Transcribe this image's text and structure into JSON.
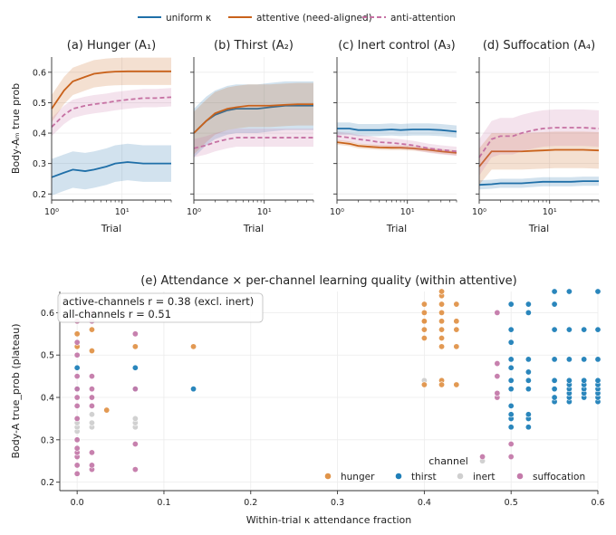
{
  "chart_data": [
    {
      "type": "line",
      "title": "(a) Hunger (A₁)",
      "xlabel": "Trial",
      "ylabel": "Body-Aₘ true prob",
      "x_scale": "log",
      "xlim": [
        1,
        50
      ],
      "ylim": [
        0.18,
        0.65
      ],
      "x_ticks": [
        "10⁰",
        "10¹"
      ],
      "y_ticks": [
        "0.2",
        "0.3",
        "0.4",
        "0.5",
        "0.6"
      ],
      "x": [
        1,
        1.5,
        2,
        3,
        4,
        6,
        8,
        12,
        20,
        30,
        50
      ],
      "series": [
        {
          "name": "uniform κ",
          "values": [
            0.255,
            0.27,
            0.28,
            0.275,
            0.28,
            0.29,
            0.3,
            0.305,
            0.3,
            0.3,
            0.3
          ],
          "band": 0.06,
          "color": "#1f6fa8"
        },
        {
          "name": "attentive (need-aligned)",
          "values": [
            0.48,
            0.54,
            0.57,
            0.585,
            0.595,
            0.6,
            0.602,
            0.603,
            0.603,
            0.603,
            0.603
          ],
          "band": 0.045,
          "color": "#c9621b"
        },
        {
          "name": "anti-attention",
          "values": [
            0.42,
            0.46,
            0.48,
            0.49,
            0.495,
            0.5,
            0.505,
            0.51,
            0.515,
            0.515,
            0.518
          ],
          "band": 0.03,
          "color": "#c671a3"
        }
      ]
    },
    {
      "type": "line",
      "title": "(b) Thirst (A₂)",
      "xlabel": "Trial",
      "x_scale": "log",
      "xlim": [
        1,
        50
      ],
      "ylim": [
        0.18,
        0.65
      ],
      "x_ticks": [
        "10⁰",
        "10¹"
      ],
      "x": [
        1,
        1.5,
        2,
        3,
        4,
        6,
        8,
        12,
        20,
        30,
        50
      ],
      "series": [
        {
          "name": "uniform κ",
          "values": [
            0.4,
            0.44,
            0.46,
            0.475,
            0.48,
            0.48,
            0.48,
            0.485,
            0.49,
            0.49,
            0.49
          ],
          "band": 0.08,
          "color": "#1f6fa8"
        },
        {
          "name": "attentive (need-aligned)",
          "values": [
            0.4,
            0.44,
            0.465,
            0.48,
            0.485,
            0.49,
            0.49,
            0.49,
            0.493,
            0.495,
            0.495
          ],
          "band": 0.07,
          "color": "#c9621b"
        },
        {
          "name": "anti-attention",
          "values": [
            0.35,
            0.36,
            0.37,
            0.38,
            0.385,
            0.385,
            0.385,
            0.385,
            0.385,
            0.385,
            0.385
          ],
          "band": 0.03,
          "color": "#c671a3"
        }
      ]
    },
    {
      "type": "line",
      "title": "(c) Inert control (A₃)",
      "xlabel": "Trial",
      "x_scale": "log",
      "xlim": [
        1,
        50
      ],
      "ylim": [
        0.18,
        0.65
      ],
      "x_ticks": [
        "10⁰",
        "10¹"
      ],
      "x": [
        1,
        1.5,
        2,
        3,
        4,
        6,
        8,
        12,
        20,
        30,
        50
      ],
      "series": [
        {
          "name": "uniform κ",
          "values": [
            0.415,
            0.415,
            0.41,
            0.41,
            0.41,
            0.412,
            0.41,
            0.412,
            0.412,
            0.41,
            0.405
          ],
          "band": 0.02,
          "color": "#1f6fa8"
        },
        {
          "name": "attentive (need-aligned)",
          "values": [
            0.37,
            0.365,
            0.358,
            0.355,
            0.353,
            0.352,
            0.352,
            0.35,
            0.345,
            0.34,
            0.335
          ],
          "band": 0.008,
          "color": "#c9621b"
        },
        {
          "name": "anti-attention",
          "values": [
            0.39,
            0.385,
            0.38,
            0.375,
            0.37,
            0.368,
            0.365,
            0.36,
            0.35,
            0.345,
            0.34
          ],
          "band": 0.015,
          "color": "#c671a3"
        }
      ]
    },
    {
      "type": "line",
      "title": "(d) Suffocation (A₄)",
      "xlabel": "Trial",
      "x_scale": "log",
      "xlim": [
        1,
        50
      ],
      "ylim": [
        0.18,
        0.65
      ],
      "x_ticks": [
        "10⁰",
        "10¹"
      ],
      "x": [
        1,
        1.5,
        2,
        3,
        4,
        6,
        8,
        12,
        20,
        30,
        50
      ],
      "series": [
        {
          "name": "uniform κ",
          "values": [
            0.23,
            0.232,
            0.235,
            0.235,
            0.235,
            0.238,
            0.24,
            0.24,
            0.24,
            0.242,
            0.242
          ],
          "band": 0.015,
          "color": "#1f6fa8"
        },
        {
          "name": "attentive (need-aligned)",
          "values": [
            0.29,
            0.34,
            0.34,
            0.34,
            0.34,
            0.342,
            0.343,
            0.345,
            0.345,
            0.345,
            0.343
          ],
          "band": 0.06,
          "color": "#c9621b"
        },
        {
          "name": "anti-attention",
          "values": [
            0.32,
            0.38,
            0.39,
            0.39,
            0.4,
            0.41,
            0.415,
            0.418,
            0.418,
            0.418,
            0.415
          ],
          "band": 0.06,
          "color": "#c671a3"
        }
      ]
    },
    {
      "type": "scatter",
      "title": "(e) Attendance × per-channel learning quality (within attentive)",
      "xlabel": "Within-trial κ attendance fraction",
      "ylabel": "Body-A true_prob (plateau)",
      "xlim": [
        -0.02,
        0.6
      ],
      "ylim": [
        0.18,
        0.65
      ],
      "x_ticks": [
        "0.0",
        "0.1",
        "0.2",
        "0.3",
        "0.4",
        "0.5",
        "0.6"
      ],
      "y_ticks": [
        "0.2",
        "0.3",
        "0.4",
        "0.5",
        "0.6"
      ],
      "annotation_lines": [
        "active-channels r = 0.38 (excl. inert)",
        "all-channels r = 0.51"
      ],
      "legend_title": "channel",
      "series": [
        {
          "name": "hunger",
          "color": "#e0944a",
          "x": [
            0.0,
            0.0,
            0.0,
            0.017,
            0.017,
            0.034,
            0.067,
            0.134,
            0.4,
            0.4,
            0.4,
            0.4,
            0.4,
            0.4,
            0.4,
            0.42,
            0.42,
            0.42,
            0.42,
            0.42,
            0.42,
            0.42,
            0.42,
            0.437,
            0.437,
            0.437,
            0.437,
            0.437,
            0.42,
            0.42
          ],
          "y": [
            0.52,
            0.55,
            0.58,
            0.56,
            0.51,
            0.37,
            0.52,
            0.52,
            0.43,
            0.56,
            0.58,
            0.6,
            0.62,
            0.58,
            0.54,
            0.52,
            0.54,
            0.56,
            0.58,
            0.6,
            0.62,
            0.64,
            0.44,
            0.43,
            0.52,
            0.56,
            0.58,
            0.62,
            0.65,
            0.43
          ]
        },
        {
          "name": "thirst",
          "color": "#1f7fb8",
          "x": [
            0.0,
            0.0,
            0.067,
            0.067,
            0.134,
            0.5,
            0.5,
            0.5,
            0.5,
            0.5,
            0.5,
            0.5,
            0.5,
            0.5,
            0.5,
            0.5,
            0.52,
            0.52,
            0.52,
            0.52,
            0.52,
            0.52,
            0.52,
            0.52,
            0.52,
            0.55,
            0.55,
            0.55,
            0.55,
            0.55,
            0.55,
            0.55,
            0.55,
            0.567,
            0.567,
            0.567,
            0.567,
            0.567,
            0.567,
            0.567,
            0.567,
            0.567,
            0.584,
            0.584,
            0.584,
            0.584,
            0.584,
            0.584,
            0.584,
            0.6,
            0.6,
            0.6,
            0.6,
            0.6,
            0.6,
            0.6,
            0.6,
            0.6
          ],
          "y": [
            0.47,
            0.42,
            0.47,
            0.42,
            0.42,
            0.33,
            0.35,
            0.36,
            0.38,
            0.42,
            0.44,
            0.47,
            0.49,
            0.53,
            0.56,
            0.62,
            0.33,
            0.35,
            0.36,
            0.42,
            0.44,
            0.46,
            0.49,
            0.6,
            0.62,
            0.39,
            0.4,
            0.42,
            0.44,
            0.56,
            0.62,
            0.65,
            0.49,
            0.39,
            0.4,
            0.41,
            0.42,
            0.43,
            0.44,
            0.49,
            0.56,
            0.65,
            0.4,
            0.41,
            0.42,
            0.43,
            0.44,
            0.49,
            0.56,
            0.39,
            0.4,
            0.41,
            0.42,
            0.43,
            0.44,
            0.49,
            0.56,
            0.65
          ]
        },
        {
          "name": "inert",
          "color": "#cfcfcf",
          "x": [
            0.0,
            0.0,
            0.0,
            0.0,
            0.0,
            0.017,
            0.017,
            0.017,
            0.017,
            0.067,
            0.067,
            0.067,
            0.4,
            0.42,
            0.467
          ],
          "y": [
            0.32,
            0.33,
            0.34,
            0.35,
            0.3,
            0.33,
            0.34,
            0.36,
            0.4,
            0.33,
            0.34,
            0.35,
            0.44,
            0.44,
            0.25
          ]
        },
        {
          "name": "suffocation",
          "color": "#c47aaa",
          "x": [
            0.0,
            0.0,
            0.0,
            0.0,
            0.0,
            0.0,
            0.0,
            0.0,
            0.0,
            0.0,
            0.0,
            0.0,
            0.0,
            0.0,
            0.017,
            0.017,
            0.017,
            0.017,
            0.017,
            0.017,
            0.017,
            0.017,
            0.017,
            0.067,
            0.067,
            0.067,
            0.067,
            0.467,
            0.484,
            0.484,
            0.484,
            0.484,
            0.484,
            0.5,
            0.5
          ],
          "y": [
            0.22,
            0.24,
            0.26,
            0.27,
            0.28,
            0.3,
            0.35,
            0.38,
            0.4,
            0.42,
            0.45,
            0.5,
            0.53,
            0.58,
            0.23,
            0.24,
            0.27,
            0.38,
            0.4,
            0.42,
            0.45,
            0.58,
            0.6,
            0.23,
            0.29,
            0.42,
            0.55,
            0.26,
            0.4,
            0.41,
            0.45,
            0.48,
            0.6,
            0.29,
            0.26
          ]
        }
      ]
    }
  ],
  "legend": {
    "items": [
      {
        "label": "uniform κ",
        "style": "solid",
        "color": "#1f6fa8"
      },
      {
        "label": "attentive (need-aligned)",
        "style": "solid",
        "color": "#c9621b"
      },
      {
        "label": "anti-attention",
        "style": "dashed",
        "color": "#c671a3"
      }
    ]
  }
}
